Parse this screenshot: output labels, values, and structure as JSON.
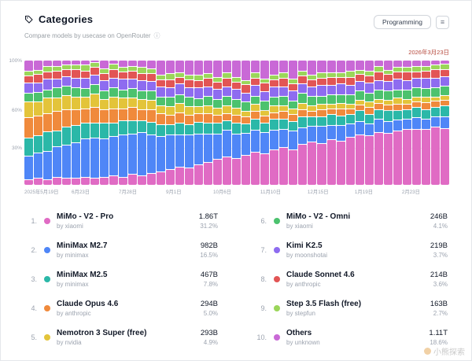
{
  "header": {
    "title": "Categories",
    "subtitle": "Compare models by usecase on OpenRouter",
    "info_icon": "ⓘ"
  },
  "toolbar": {
    "category_button_label": "Programming",
    "expand_icon_glyph": "≡"
  },
  "chart_meta": {
    "current_date_label": "2026年3月23日"
  },
  "chart_data": {
    "type": "stacked_bar",
    "normalized_to_100": true,
    "title": "",
    "xlabel": "",
    "ylabel": "",
    "y_tick_labels": [
      "100%",
      "60%",
      "30%"
    ],
    "x_tick_labels": [
      "2025年5月19日",
      "6月23日",
      "7月28日",
      "9月1日",
      "10月6日",
      "11月10日",
      "12月15日",
      "1月19日",
      "2月23日"
    ],
    "bars_count": 45,
    "legend_position": "bottom-list",
    "series": [
      {
        "name": "MiMo - V2 - Pro",
        "color": "#e06bc4",
        "values": [
          4,
          5,
          4,
          6,
          5,
          5,
          6,
          5,
          6,
          7,
          6,
          8,
          7,
          9,
          10,
          12,
          14,
          13,
          16,
          18,
          20,
          22,
          21,
          24,
          26,
          25,
          28,
          30,
          29,
          32,
          34,
          33,
          36,
          35,
          38,
          40,
          39,
          42,
          41,
          43,
          44,
          45,
          44,
          46,
          45
        ]
      },
      {
        "name": "MiniMax M2.7",
        "color": "#4f86f7",
        "values": [
          18,
          20,
          22,
          24,
          26,
          28,
          30,
          32,
          30,
          31,
          33,
          32,
          34,
          30,
          28,
          27,
          25,
          26,
          24,
          22,
          20,
          21,
          19,
          18,
          17,
          16,
          15,
          14,
          15,
          13,
          12,
          13,
          11,
          12,
          10,
          10,
          9,
          10,
          9,
          8,
          8,
          9,
          8,
          8,
          9
        ]
      },
      {
        "name": "MiniMax M2.5",
        "color": "#2bb8a8",
        "values": [
          14,
          13,
          15,
          12,
          14,
          13,
          12,
          11,
          12,
          10,
          11,
          10,
          9,
          10,
          9,
          8,
          9,
          8,
          9,
          8,
          8,
          7,
          8,
          7,
          8,
          7,
          8,
          7,
          7,
          8,
          7,
          7,
          8,
          7,
          7,
          8,
          7,
          7,
          8,
          7,
          7,
          8,
          7,
          7,
          8
        ]
      },
      {
        "name": "Claude Opus 4.6",
        "color": "#f08a3c",
        "values": [
          16,
          15,
          14,
          15,
          13,
          12,
          11,
          12,
          10,
          11,
          9,
          10,
          8,
          9,
          8,
          7,
          8,
          7,
          6,
          7,
          6,
          5,
          6,
          5,
          6,
          5,
          5,
          6,
          5,
          5,
          4,
          5,
          4,
          5,
          4,
          4,
          5,
          4,
          4,
          5,
          4,
          4,
          5,
          4,
          4
        ]
      },
      {
        "name": "Nemotron 3 Super (free)",
        "color": "#e3c43a",
        "values": [
          12,
          11,
          12,
          10,
          11,
          10,
          9,
          10,
          8,
          9,
          8,
          7,
          8,
          7,
          6,
          6,
          7,
          6,
          5,
          6,
          5,
          6,
          5,
          4,
          5,
          4,
          5,
          4,
          4,
          5,
          4,
          4,
          3,
          4,
          3,
          3,
          4,
          3,
          3,
          4,
          3,
          3,
          4,
          3,
          3
        ]
      },
      {
        "name": "MiMo - V2 - Omni",
        "color": "#4cc26e",
        "values": [
          6,
          7,
          6,
          8,
          7,
          7,
          6,
          7,
          6,
          7,
          6,
          7,
          6,
          7,
          6,
          7,
          6,
          7,
          6,
          7,
          6,
          7,
          6,
          7,
          6,
          7,
          6,
          7,
          6,
          7,
          7,
          6,
          7,
          6,
          7,
          7,
          6,
          7,
          7,
          6,
          7,
          7,
          6,
          7,
          7
        ]
      },
      {
        "name": "Kimi K2.5",
        "color": "#8e6cf0",
        "values": [
          8,
          7,
          8,
          6,
          7,
          7,
          8,
          7,
          8,
          7,
          8,
          7,
          8,
          7,
          8,
          7,
          8,
          7,
          8,
          7,
          8,
          7,
          8,
          7,
          8,
          7,
          8,
          7,
          8,
          7,
          7,
          8,
          7,
          8,
          7,
          7,
          8,
          7,
          7,
          8,
          7,
          7,
          8,
          7,
          7
        ]
      },
      {
        "name": "Claude Sonnet 4.6",
        "color": "#e25555",
        "values": [
          5,
          6,
          5,
          6,
          5,
          6,
          5,
          6,
          5,
          6,
          5,
          6,
          5,
          6,
          5,
          6,
          5,
          6,
          5,
          6,
          5,
          6,
          5,
          6,
          5,
          6,
          5,
          6,
          5,
          6,
          5,
          5,
          6,
          5,
          6,
          5,
          5,
          6,
          5,
          5,
          6,
          5,
          5,
          6,
          5
        ]
      },
      {
        "name": "Step 3.5 Flash (free)",
        "color": "#9bd65a",
        "values": [
          3,
          3,
          4,
          3,
          3,
          3,
          4,
          3,
          3,
          4,
          3,
          3,
          4,
          3,
          3,
          4,
          3,
          3,
          4,
          3,
          3,
          4,
          3,
          3,
          4,
          3,
          3,
          4,
          3,
          3,
          3,
          4,
          3,
          3,
          4,
          3,
          3,
          4,
          3,
          3,
          3,
          4,
          3,
          3,
          4
        ]
      },
      {
        "name": "Others",
        "color": "#c969d6",
        "values": [
          14,
          13,
          10,
          10,
          9,
          9,
          9,
          7,
          12,
          8,
          11,
          10,
          11,
          12,
          17,
          16,
          15,
          17,
          17,
          16,
          19,
          15,
          19,
          22,
          15,
          20,
          17,
          15,
          21,
          14,
          17,
          15,
          15,
          15,
          14,
          13,
          14,
          10,
          13,
          11,
          11,
          10,
          10,
          9,
          8
        ]
      }
    ]
  },
  "leaderboard": {
    "left": [
      {
        "rank": "1.",
        "color": "#e06bc4",
        "name": "MiMo - V2 - Pro",
        "byline": "by xiaomi",
        "value": "1.86T",
        "percent": "31.2%"
      },
      {
        "rank": "2.",
        "color": "#4f86f7",
        "name": "MiniMax M2.7",
        "byline": "by minimax",
        "value": "982B",
        "percent": "16.5%"
      },
      {
        "rank": "3.",
        "color": "#2bb8a8",
        "name": "MiniMax M2.5",
        "byline": "by minimax",
        "value": "467B",
        "percent": "7.8%"
      },
      {
        "rank": "4.",
        "color": "#f08a3c",
        "name": "Claude Opus 4.6",
        "byline": "by anthropic",
        "value": "294B",
        "percent": "5.0%"
      },
      {
        "rank": "5.",
        "color": "#e3c43a",
        "name": "Nemotron 3 Super (free)",
        "byline": "by nvidia",
        "value": "293B",
        "percent": "4.9%"
      }
    ],
    "right": [
      {
        "rank": "6.",
        "color": "#4cc26e",
        "name": "MiMo - V2 - Omni",
        "byline": "by xiaomi",
        "value": "246B",
        "percent": "4.1%"
      },
      {
        "rank": "7.",
        "color": "#8e6cf0",
        "name": "Kimi K2.5",
        "byline": "by moonshotai",
        "value": "219B",
        "percent": "3.7%"
      },
      {
        "rank": "8.",
        "color": "#e25555",
        "name": "Claude Sonnet 4.6",
        "byline": "by anthropic",
        "value": "214B",
        "percent": "3.6%"
      },
      {
        "rank": "9.",
        "color": "#9bd65a",
        "name": "Step 3.5 Flash (free)",
        "byline": "by stepfun",
        "value": "163B",
        "percent": "2.7%"
      },
      {
        "rank": "10.",
        "color": "#c969d6",
        "name": "Others",
        "byline": "by unknown",
        "value": "1.11T",
        "percent": "18.6%"
      }
    ]
  },
  "watermark": "小熊探索"
}
